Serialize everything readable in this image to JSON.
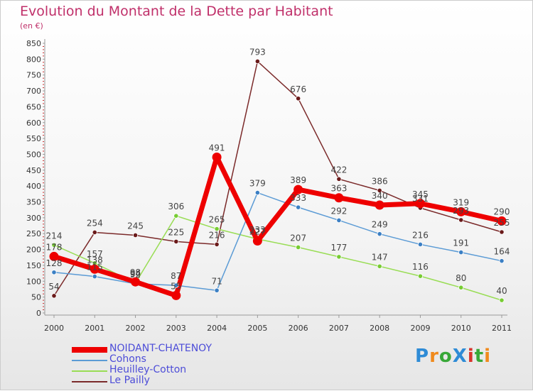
{
  "title": "Evolution du Montant de la Dette par Habitant",
  "unit": "(en €)",
  "logo": {
    "text": "ProXiti",
    "colors": [
      "#2e8bd6",
      "#f08a1c",
      "#38a838",
      "#2e8bd6",
      "#d8342c",
      "#38a838",
      "#f08a1c"
    ]
  },
  "chart_data": {
    "type": "line",
    "x": [
      "2000",
      "2001",
      "2002",
      "2003",
      "2004",
      "2005",
      "2006",
      "2007",
      "2008",
      "2009",
      "2010",
      "2011"
    ],
    "ylim": [
      0,
      850
    ],
    "yticks": [
      0,
      50,
      100,
      150,
      200,
      250,
      300,
      350,
      400,
      450,
      500,
      550,
      600,
      650,
      700,
      750,
      800,
      850
    ],
    "grid": false,
    "legend_position": "bottom-left",
    "series": [
      {
        "name": "NOIDANT-CHATENOY",
        "color": "#ee0000",
        "width": 7,
        "values": [
          178,
          138,
          98,
          55,
          491,
          227,
          389,
          363,
          340,
          345,
          319,
          290
        ],
        "labels": [
          "178",
          "138",
          "98",
          "55",
          "491",
          "227",
          "389",
          "363",
          "340",
          "345",
          "319",
          "290"
        ]
      },
      {
        "name": "Cohons",
        "color": "#5b9bd5",
        "width": 1.5,
        "values": [
          128,
          115,
          92,
          87,
          71,
          379,
          333,
          292,
          249,
          216,
          191,
          164
        ],
        "labels": [
          "128",
          "115",
          "92",
          "87",
          "71",
          "379",
          "333",
          "292",
          "249",
          "216",
          "191",
          "164"
        ]
      },
      {
        "name": "Heuilley-Cotton",
        "color": "#99dd55",
        "width": 1.5,
        "values": [
          214,
          157,
          94,
          306,
          265,
          233,
          207,
          177,
          147,
          116,
          80,
          40
        ],
        "labels": [
          "214",
          "157",
          "94",
          "306",
          "265",
          "233",
          "207",
          "177",
          "147",
          "116",
          "80",
          "40"
        ]
      },
      {
        "name": "Le Pailly",
        "color": "#7b2a2a",
        "width": 1.5,
        "values": [
          54,
          254,
          245,
          225,
          216,
          793,
          676,
          422,
          386,
          331,
          293,
          255
        ],
        "labels": [
          "54",
          "254",
          "245",
          "225",
          "216",
          "793",
          "676",
          "422",
          "386",
          "331",
          "293",
          "255"
        ]
      }
    ],
    "marker_colors": {
      "NOIDANT-CHATENOY": "#ee0000",
      "Cohons": "#3b7fc4",
      "Heuilley-Cotton": "#77cc33",
      "Le Pailly": "#6a1a1a"
    }
  }
}
